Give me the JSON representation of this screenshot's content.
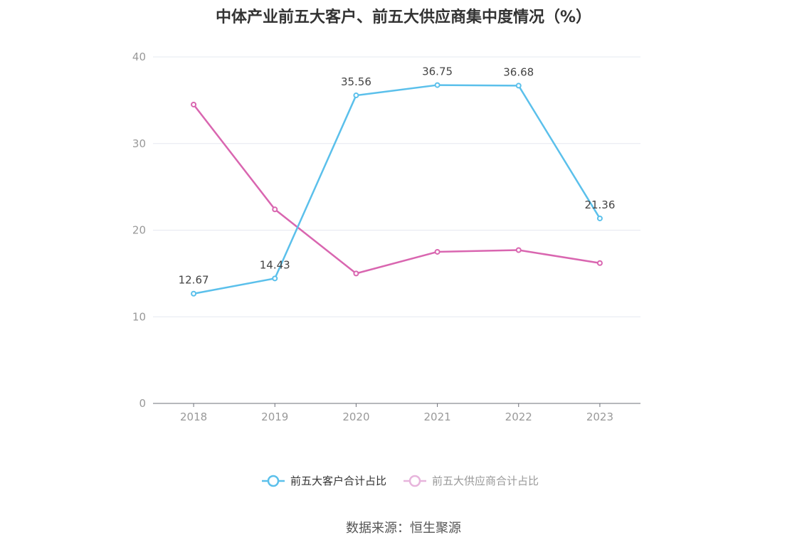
{
  "chart_data": {
    "type": "line",
    "title": "中体产业前五大客户、前五大供应商集中度情况（%）",
    "categories": [
      "2018",
      "2019",
      "2020",
      "2021",
      "2022",
      "2023"
    ],
    "ylim": [
      0,
      40
    ],
    "yticks": [
      0,
      10,
      20,
      30,
      40
    ],
    "grid": true,
    "legend_position": "bottom-center",
    "series": [
      {
        "name": "前五大客户合计占比",
        "values": [
          12.67,
          14.43,
          35.56,
          36.75,
          36.68,
          21.36
        ],
        "labels": [
          "12.67",
          "14.43",
          "35.56",
          "36.75",
          "36.68",
          "21.36"
        ],
        "color": "#5bc0eb"
      },
      {
        "name": "前五大供应商合计占比",
        "values": [
          34.5,
          22.4,
          15.0,
          17.5,
          17.7,
          16.2
        ],
        "color": "#d966b0"
      }
    ],
    "source": "数据来源：恒生聚源"
  },
  "legend_inactive_color": "#999999",
  "legend_inactive_icon": "#e7b4dc"
}
